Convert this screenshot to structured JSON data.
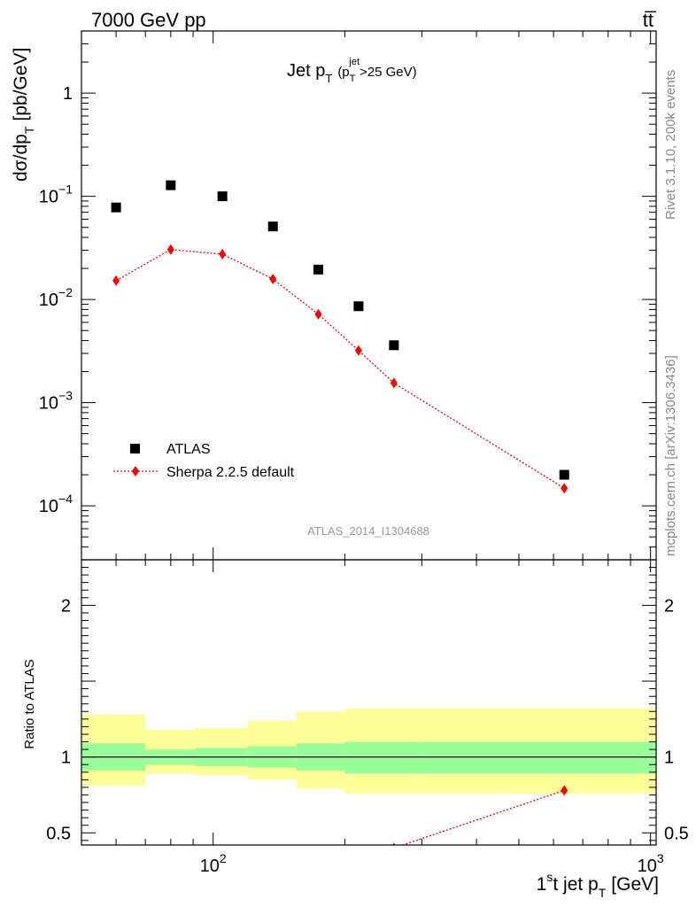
{
  "header": {
    "left": "7000 GeV pp",
    "right": "tt̅"
  },
  "side_labels": {
    "rivet": "Rivet 3.1.10,  200k events",
    "mcplots": "mcplots.cern.ch [arXiv:1306.3436]"
  },
  "chart_data": [
    {
      "type": "scatter",
      "panel": "main",
      "title_main": "Jet p",
      "title_sub": "T",
      "title_paren_open": "(p",
      "title_paren_sub": "T",
      "title_paren_sup": "jet",
      "title_paren_close": ">25 GeV)",
      "ylabel_main": "dσ/dp",
      "ylabel_sub": "T",
      "ylabel_unit": "[pb/GeV]",
      "watermark": "ATLAS_2014_I1304688",
      "yscale": "log",
      "xscale": "log",
      "xlim": [
        50,
        1030
      ],
      "ylim": [
        3e-05,
        4
      ],
      "ytick_labels": [
        {
          "value": 1,
          "base": "1",
          "exp": ""
        },
        {
          "value": 0.1,
          "base": "10",
          "exp": "−1"
        },
        {
          "value": 0.01,
          "base": "10",
          "exp": "−2"
        },
        {
          "value": 0.001,
          "base": "10",
          "exp": "−3"
        },
        {
          "value": 0.0001,
          "base": "10",
          "exp": "−4"
        }
      ],
      "legend_position": "bottom-left",
      "series": [
        {
          "name": "ATLAS",
          "marker": "square",
          "color": "#000000",
          "x": [
            60,
            80,
            105,
            137,
            174,
            215,
            259,
            635
          ],
          "y": [
            0.078,
            0.128,
            0.1,
            0.051,
            0.0195,
            0.0086,
            0.0036,
            0.0002
          ]
        },
        {
          "name": "Sherpa 2.2.5 default",
          "marker": "diamond",
          "line": "dotted",
          "color": "#ff0000",
          "x": [
            60,
            80,
            105,
            137,
            174,
            215,
            259,
            635
          ],
          "y": [
            0.0152,
            0.0305,
            0.0275,
            0.0158,
            0.0072,
            0.0032,
            0.00155,
            0.000148
          ]
        }
      ]
    },
    {
      "type": "area",
      "panel": "ratio",
      "ylabel": "Ratio to ATLAS",
      "xlabel_pre": "1",
      "xlabel_sup": "s",
      "xlabel_main": "t jet p",
      "xlabel_sub": "T",
      "xlabel_unit": "[GeV]",
      "xscale": "log",
      "xlim": [
        50,
        1030
      ],
      "ylim": [
        0.42,
        2.3
      ],
      "xtick_labels": [
        {
          "value": 100,
          "base": "10",
          "exp": "2"
        },
        {
          "value": 1000,
          "base": "10",
          "exp": "3"
        }
      ],
      "ytick_labels": [
        {
          "value": 2,
          "label": "2"
        },
        {
          "value": 1,
          "label": "1"
        },
        {
          "value": 0.5,
          "label": "0.5"
        }
      ],
      "bands": {
        "bin_edges": [
          50,
          70,
          91,
          120,
          155,
          200,
          300,
          1030
        ],
        "stat": {
          "lo": [
            0.91,
            0.95,
            0.94,
            0.93,
            0.91,
            0.89,
            0.89
          ],
          "hi": [
            1.09,
            1.05,
            1.06,
            1.07,
            1.09,
            1.1,
            1.1
          ]
        },
        "total": {
          "lo": [
            0.81,
            0.89,
            0.88,
            0.85,
            0.79,
            0.76,
            0.76
          ],
          "hi": [
            1.28,
            1.18,
            1.19,
            1.24,
            1.3,
            1.32,
            1.32
          ]
        },
        "stat_color": "#99ff99",
        "total_color": "#ffff99"
      },
      "series": [
        {
          "name": "Sherpa 2.2.5 default",
          "marker": "diamond",
          "line": "dotted",
          "color": "#ff0000",
          "x": [
            215,
            259,
            635
          ],
          "y": [
            0.33,
            0.4,
            0.78
          ]
        }
      ]
    }
  ]
}
